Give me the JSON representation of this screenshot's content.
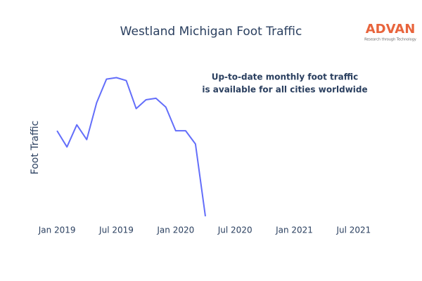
{
  "chart_data": {
    "type": "line",
    "title": "Westland Michigan Foot Traffic",
    "y_label": "Foot Traffic",
    "annotation": [
      "Up-to-date monthly foot traffic",
      "is available for all cities worldwide"
    ],
    "logo": {
      "name": "ADVAN",
      "tagline": "Research through Technology"
    },
    "x": [
      "2019-01",
      "2019-02",
      "2019-03",
      "2019-04",
      "2019-05",
      "2019-06",
      "2019-07",
      "2019-08",
      "2019-09",
      "2019-10",
      "2019-11",
      "2019-12",
      "2020-01",
      "2020-02",
      "2020-03",
      "2020-04"
    ],
    "values": [
      59,
      48,
      63,
      53,
      78,
      94,
      95,
      93,
      74,
      80,
      81,
      75,
      59,
      59,
      50,
      1
    ],
    "color": "#636efa",
    "xlim": [
      "2018-11",
      "2021-09"
    ],
    "xticks": [
      {
        "value": "2019-01",
        "label": "Jan 2019"
      },
      {
        "value": "2019-07",
        "label": "Jul 2019"
      },
      {
        "value": "2020-01",
        "label": "Jan 2020"
      },
      {
        "value": "2020-07",
        "label": "Jul 2020"
      },
      {
        "value": "2021-01",
        "label": "Jan 2021"
      },
      {
        "value": "2021-07",
        "label": "Jul 2021"
      }
    ],
    "ylim": [
      0,
      100
    ],
    "grid": false
  }
}
